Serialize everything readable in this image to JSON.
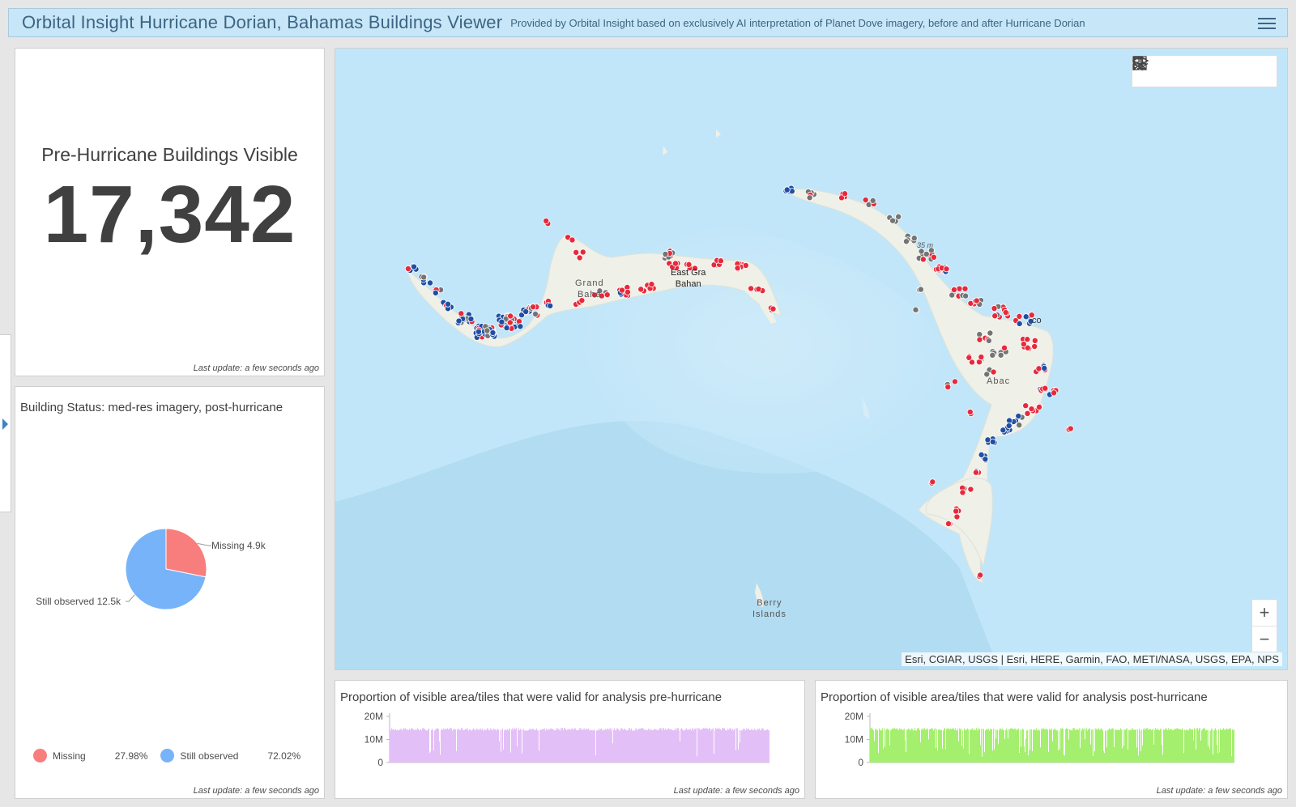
{
  "header": {
    "title": "Orbital Insight Hurricane Dorian, Bahamas Buildings Viewer",
    "subtitle": "Provided by Orbital Insight based on exclusively AI interpretation of Planet Dove imagery, before and after Hurricane Dorian"
  },
  "indicator": {
    "title": "Pre-Hurricane Buildings Visible",
    "value": "17,342",
    "last_update": "Last update: a few seconds ago"
  },
  "pie_panel": {
    "title": "Building Status: med-res imagery, post-hurricane",
    "last_update": "Last update: a few seconds ago",
    "legend": [
      {
        "label": "Missing",
        "percent": "27.98%",
        "color": "#f87e7e"
      },
      {
        "label": "Still observed",
        "percent": "72.02%",
        "color": "#77b3f9"
      }
    ]
  },
  "chart_data": [
    {
      "type": "pie",
      "title": "Building Status: med-res imagery, post-hurricane",
      "slices": [
        {
          "label": "Missing",
          "value": 4.9,
          "value_label": "Missing 4.9k",
          "percent": 27.98,
          "color": "#f87e7e"
        },
        {
          "label": "Still observed",
          "value": 12.5,
          "value_label": "Still observed 12.5k",
          "percent": 72.02,
          "color": "#77b3f9"
        }
      ]
    },
    {
      "type": "bar",
      "title": "Proportion of visible area/tiles that were valid for analysis pre-hurricane",
      "y_ticks": [
        "20M",
        "10M",
        "0"
      ],
      "ylim": [
        0,
        20000000
      ],
      "typical_value": 15000000,
      "color": "#e3bff7"
    },
    {
      "type": "bar",
      "title": "Proportion of visible area/tiles that were valid for analysis post-hurricane",
      "y_ticks": [
        "20M",
        "10M",
        "0"
      ],
      "ylim": [
        0,
        20000000
      ],
      "typical_value": 15000000,
      "color": "#a5ef6e"
    }
  ],
  "map": {
    "attribution": "Esri, CGIAR, USGS | Esri, HERE, Garmin, FAO, METI/NASA, USGS, EPA, NPS",
    "labels": {
      "grand_bahama_1": "Grand",
      "grand_bahama_2": "Baha",
      "east_grand_1": "East Gra",
      "east_grand_2": "Bahan",
      "abaco": "Abac",
      "abaco_co": "co",
      "berry_1": "Berry",
      "berry_2": "Islands",
      "depth": "35 m"
    },
    "zoom_in": "+",
    "zoom_out": "−",
    "toolbar": [
      "search-icon",
      "bookmark-icon",
      "legend-icon",
      "layers-icon",
      "basemap-gallery-icon"
    ]
  },
  "hist_pre": {
    "title": "Proportion of visible area/tiles that were valid for analysis pre-hurricane",
    "last_update": "Last update: a few seconds ago"
  },
  "hist_post": {
    "title": "Proportion of visible area/tiles that were valid for analysis post-hurricane",
    "last_update": "Last update: a few seconds ago"
  }
}
